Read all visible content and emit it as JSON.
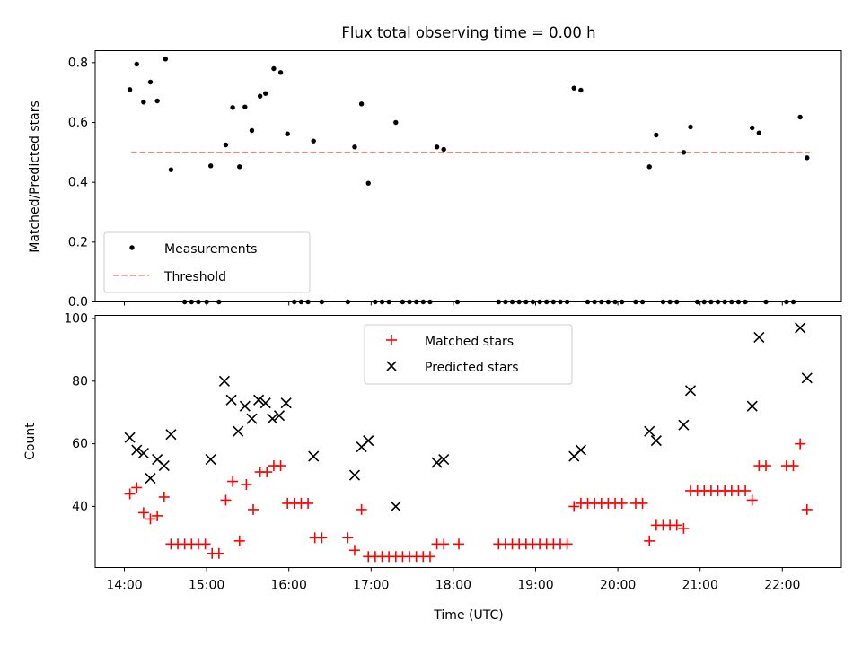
{
  "title": "Flux total observing time = 0.00 h",
  "chart_data": [
    {
      "type": "scatter",
      "ylabel": "Matched/Predicted stars",
      "ylim": [
        0,
        0.84
      ],
      "yticks": [
        0.0,
        0.2,
        0.4,
        0.6,
        0.8
      ],
      "legend_position": "lower-left",
      "legend": [
        {
          "label": "Measurements",
          "marker": "dot",
          "color": "#000000"
        },
        {
          "label": "Threshold",
          "marker": "dashed-line",
          "color": "#ff7f7f"
        }
      ],
      "threshold": {
        "y": 0.5,
        "x_start": "14:05",
        "x_end": "22:20"
      },
      "series": [
        {
          "name": "Measurements",
          "color": "#000000",
          "points": [
            [
              "14:04",
              0.71
            ],
            [
              "14:09",
              0.795
            ],
            [
              "14:14",
              0.668
            ],
            [
              "14:19",
              0.735
            ],
            [
              "14:24",
              0.672
            ],
            [
              "14:30",
              0.812
            ],
            [
              "14:34",
              0.442
            ],
            [
              "14:44",
              0
            ],
            [
              "14:49",
              0
            ],
            [
              "14:54",
              0
            ],
            [
              "15:00",
              0
            ],
            [
              "15:03",
              0.455
            ],
            [
              "15:09",
              0
            ],
            [
              "15:14",
              0.525
            ],
            [
              "15:19",
              0.65
            ],
            [
              "15:24",
              0.452
            ],
            [
              "15:28",
              0.652
            ],
            [
              "15:33",
              0.573
            ],
            [
              "15:39",
              0.688
            ],
            [
              "15:43",
              0.697
            ],
            [
              "15:49",
              0.78
            ],
            [
              "15:54",
              0.767
            ],
            [
              "15:59",
              0.562
            ],
            [
              "16:04",
              0
            ],
            [
              "16:09",
              0
            ],
            [
              "16:14",
              0
            ],
            [
              "16:18",
              0.538
            ],
            [
              "16:24",
              0
            ],
            [
              "16:43",
              0
            ],
            [
              "16:48",
              0.518
            ],
            [
              "16:53",
              0.662
            ],
            [
              "16:58",
              0.397
            ],
            [
              "17:03",
              0
            ],
            [
              "17:08",
              0
            ],
            [
              "17:13",
              0
            ],
            [
              "17:18",
              0.6
            ],
            [
              "17:23",
              0
            ],
            [
              "17:28",
              0
            ],
            [
              "17:33",
              0
            ],
            [
              "17:38",
              0
            ],
            [
              "17:43",
              0
            ],
            [
              "17:48",
              0.518
            ],
            [
              "17:53",
              0.51
            ],
            [
              "18:03",
              0
            ],
            [
              "18:33",
              0
            ],
            [
              "18:38",
              0
            ],
            [
              "18:43",
              0
            ],
            [
              "18:48",
              0
            ],
            [
              "18:53",
              0
            ],
            [
              "18:58",
              0
            ],
            [
              "19:03",
              0
            ],
            [
              "19:08",
              0
            ],
            [
              "19:13",
              0
            ],
            [
              "19:18",
              0
            ],
            [
              "19:23",
              0
            ],
            [
              "19:28",
              0.715
            ],
            [
              "19:33",
              0.708
            ],
            [
              "19:38",
              0
            ],
            [
              "19:43",
              0
            ],
            [
              "19:48",
              0
            ],
            [
              "19:53",
              0
            ],
            [
              "19:58",
              0
            ],
            [
              "20:03",
              0
            ],
            [
              "20:13",
              0
            ],
            [
              "20:18",
              0
            ],
            [
              "20:23",
              0.452
            ],
            [
              "20:28",
              0.558
            ],
            [
              "20:33",
              0
            ],
            [
              "20:38",
              0
            ],
            [
              "20:43",
              0
            ],
            [
              "20:48",
              0.5
            ],
            [
              "20:53",
              0.585
            ],
            [
              "20:58",
              0
            ],
            [
              "21:03",
              0
            ],
            [
              "21:08",
              0
            ],
            [
              "21:13",
              0
            ],
            [
              "21:18",
              0
            ],
            [
              "21:23",
              0
            ],
            [
              "21:28",
              0
            ],
            [
              "21:33",
              0
            ],
            [
              "21:38",
              0.582
            ],
            [
              "21:43",
              0.565
            ],
            [
              "21:48",
              0
            ],
            [
              "22:03",
              0
            ],
            [
              "22:08",
              0
            ],
            [
              "22:13",
              0.618
            ],
            [
              "22:18",
              0.482
            ]
          ]
        }
      ]
    },
    {
      "type": "scatter",
      "xlabel": "Time (UTC)",
      "ylabel": "Count",
      "ylim": [
        20.5,
        101
      ],
      "yticks": [
        40,
        60,
        80,
        100
      ],
      "xticks": [
        "14:00",
        "15:00",
        "16:00",
        "17:00",
        "18:00",
        "19:00",
        "20:00",
        "21:00",
        "22:00"
      ],
      "legend_position": "upper-center",
      "legend": [
        {
          "label": "Matched stars",
          "marker": "plus",
          "color": "#ff0000"
        },
        {
          "label": "Predicted stars",
          "marker": "x",
          "color": "#000000"
        }
      ],
      "series": [
        {
          "name": "Matched stars",
          "marker": "plus",
          "color": "#ff0000",
          "points": [
            [
              "14:04",
              44
            ],
            [
              "14:09",
              46
            ],
            [
              "14:14",
              38
            ],
            [
              "14:19",
              36
            ],
            [
              "14:24",
              37
            ],
            [
              "14:29",
              43
            ],
            [
              "14:34",
              28
            ],
            [
              "14:39",
              28
            ],
            [
              "14:44",
              28
            ],
            [
              "14:49",
              28
            ],
            [
              "14:54",
              28
            ],
            [
              "14:59",
              28
            ],
            [
              "15:04",
              25
            ],
            [
              "15:09",
              25
            ],
            [
              "15:14",
              42
            ],
            [
              "15:19",
              48
            ],
            [
              "15:24",
              29
            ],
            [
              "15:29",
              47
            ],
            [
              "15:34",
              39
            ],
            [
              "15:39",
              51
            ],
            [
              "15:44",
              51
            ],
            [
              "15:49",
              53
            ],
            [
              "15:54",
              53
            ],
            [
              "15:59",
              41
            ],
            [
              "16:04",
              41
            ],
            [
              "16:09",
              41
            ],
            [
              "16:14",
              41
            ],
            [
              "16:19",
              30
            ],
            [
              "16:24",
              30
            ],
            [
              "16:43",
              30
            ],
            [
              "16:48",
              26
            ],
            [
              "16:53",
              39
            ],
            [
              "16:58",
              24
            ],
            [
              "17:03",
              24
            ],
            [
              "17:08",
              24
            ],
            [
              "17:13",
              24
            ],
            [
              "17:18",
              24
            ],
            [
              "17:23",
              24
            ],
            [
              "17:28",
              24
            ],
            [
              "17:33",
              24
            ],
            [
              "17:38",
              24
            ],
            [
              "17:43",
              24
            ],
            [
              "17:48",
              28
            ],
            [
              "17:53",
              28
            ],
            [
              "18:04",
              28
            ],
            [
              "18:33",
              28
            ],
            [
              "18:38",
              28
            ],
            [
              "18:43",
              28
            ],
            [
              "18:48",
              28
            ],
            [
              "18:53",
              28
            ],
            [
              "18:58",
              28
            ],
            [
              "19:03",
              28
            ],
            [
              "19:08",
              28
            ],
            [
              "19:13",
              28
            ],
            [
              "19:18",
              28
            ],
            [
              "19:23",
              28
            ],
            [
              "19:28",
              40
            ],
            [
              "19:33",
              41
            ],
            [
              "19:38",
              41
            ],
            [
              "19:43",
              41
            ],
            [
              "19:48",
              41
            ],
            [
              "19:53",
              41
            ],
            [
              "19:58",
              41
            ],
            [
              "20:03",
              41
            ],
            [
              "20:13",
              41
            ],
            [
              "20:18",
              41
            ],
            [
              "20:23",
              29
            ],
            [
              "20:28",
              34
            ],
            [
              "20:33",
              34
            ],
            [
              "20:38",
              34
            ],
            [
              "20:43",
              34
            ],
            [
              "20:48",
              33
            ],
            [
              "20:53",
              45
            ],
            [
              "20:58",
              45
            ],
            [
              "21:03",
              45
            ],
            [
              "21:08",
              45
            ],
            [
              "21:13",
              45
            ],
            [
              "21:18",
              45
            ],
            [
              "21:23",
              45
            ],
            [
              "21:28",
              45
            ],
            [
              "21:33",
              45
            ],
            [
              "21:38",
              42
            ],
            [
              "21:43",
              53
            ],
            [
              "21:48",
              53
            ],
            [
              "22:03",
              53
            ],
            [
              "22:08",
              53
            ],
            [
              "22:13",
              60
            ],
            [
              "22:18",
              39
            ]
          ]
        },
        {
          "name": "Predicted stars",
          "marker": "x",
          "color": "#000000",
          "points": [
            [
              "14:04",
              62
            ],
            [
              "14:09",
              58
            ],
            [
              "14:14",
              57
            ],
            [
              "14:19",
              49
            ],
            [
              "14:24",
              55
            ],
            [
              "14:29",
              53
            ],
            [
              "14:34",
              63
            ],
            [
              "15:03",
              55
            ],
            [
              "15:13",
              80
            ],
            [
              "15:18",
              74
            ],
            [
              "15:23",
              64
            ],
            [
              "15:28",
              72
            ],
            [
              "15:33",
              68
            ],
            [
              "15:38",
              74
            ],
            [
              "15:43",
              73
            ],
            [
              "15:48",
              68
            ],
            [
              "15:53",
              69
            ],
            [
              "15:58",
              73
            ],
            [
              "16:18",
              56
            ],
            [
              "16:48",
              50
            ],
            [
              "16:53",
              59
            ],
            [
              "16:58",
              61
            ],
            [
              "17:18",
              40
            ],
            [
              "17:48",
              54
            ],
            [
              "17:53",
              55
            ],
            [
              "19:28",
              56
            ],
            [
              "19:33",
              58
            ],
            [
              "20:23",
              64
            ],
            [
              "20:28",
              61
            ],
            [
              "20:48",
              66
            ],
            [
              "20:53",
              77
            ],
            [
              "21:38",
              72
            ],
            [
              "21:43",
              94
            ],
            [
              "22:13",
              97
            ],
            [
              "22:18",
              81
            ]
          ]
        }
      ]
    }
  ]
}
